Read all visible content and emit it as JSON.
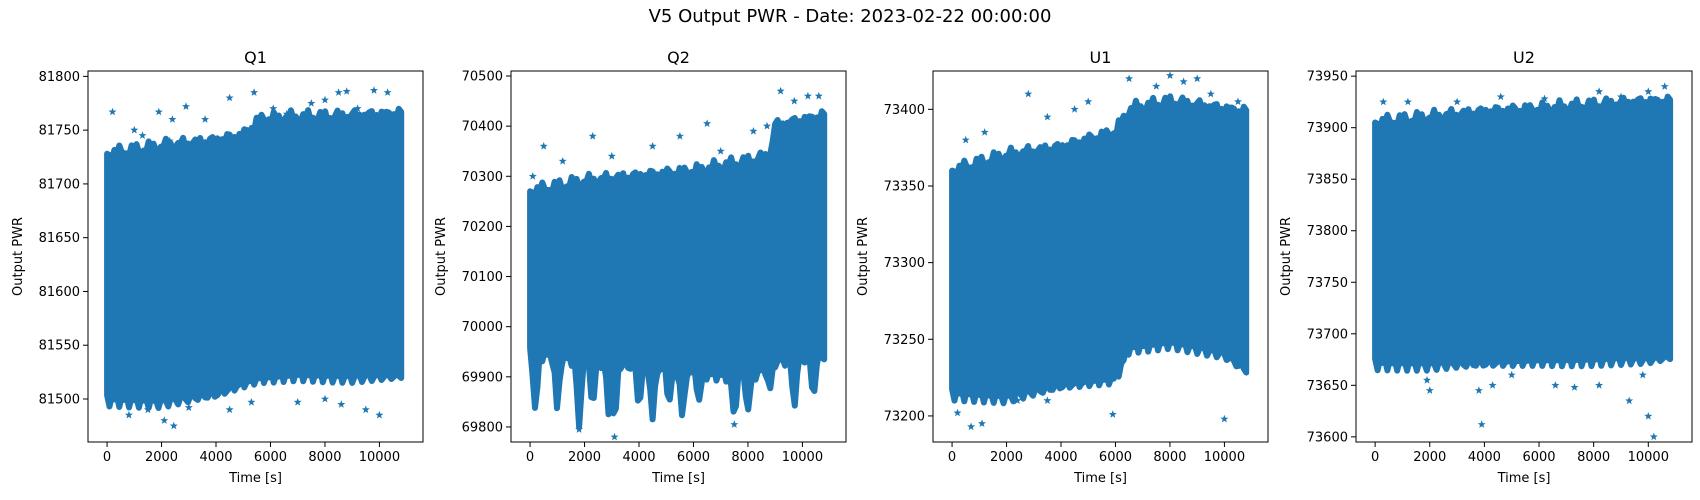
{
  "figure": {
    "suptitle": "V5 Output PWR - Date: 2023-02-22 00:00:00"
  },
  "style": {
    "marker_color": "#1f77b4",
    "marker": "star"
  },
  "chart_data": [
    {
      "type": "scatter",
      "title": "Q1",
      "xlabel": "Time [s]",
      "ylabel": "Output PWR",
      "xlim": [
        -700,
        11600
      ],
      "ylim": [
        81460,
        81805
      ],
      "xticks": [
        0,
        2000,
        4000,
        6000,
        8000,
        10000
      ],
      "yticks": [
        81500,
        81550,
        81600,
        81650,
        81700,
        81750,
        81800
      ],
      "grid": false,
      "band": {
        "x": [
          0,
          2000,
          4000,
          5000,
          5600,
          7000,
          9000,
          10800
        ],
        "upper": [
          81728,
          81735,
          81740,
          81745,
          81760,
          81762,
          81763,
          81765
        ],
        "lower": [
          81500,
          81497,
          81505,
          81515,
          81520,
          81523,
          81520,
          81522
        ]
      },
      "outliers": [
        [
          200,
          81767
        ],
        [
          1000,
          81750
        ],
        [
          1300,
          81745
        ],
        [
          1900,
          81767
        ],
        [
          2300,
          81740
        ],
        [
          2400,
          81760
        ],
        [
          2900,
          81772
        ],
        [
          3600,
          81760
        ],
        [
          4500,
          81780
        ],
        [
          5400,
          81785
        ],
        [
          6100,
          81770
        ],
        [
          6600,
          81765
        ],
        [
          7500,
          81775
        ],
        [
          8000,
          81778
        ],
        [
          8500,
          81785
        ],
        [
          8800,
          81786
        ],
        [
          9200,
          81770
        ],
        [
          9800,
          81787
        ],
        [
          10300,
          81785
        ],
        [
          800,
          81485
        ],
        [
          1500,
          81490
        ],
        [
          2100,
          81480
        ],
        [
          2450,
          81475
        ],
        [
          3000,
          81492
        ],
        [
          4500,
          81490
        ],
        [
          5300,
          81497
        ],
        [
          7000,
          81497
        ],
        [
          8000,
          81500
        ],
        [
          8600,
          81495
        ],
        [
          9500,
          81490
        ],
        [
          10000,
          81485
        ]
      ]
    },
    {
      "type": "scatter",
      "title": "Q2",
      "xlabel": "Time [s]",
      "ylabel": "Output PWR",
      "xlim": [
        -700,
        11600
      ],
      "ylim": [
        69770,
        70510
      ],
      "xticks": [
        0,
        2000,
        4000,
        6000,
        8000,
        10000
      ],
      "yticks": [
        69800,
        69900,
        70000,
        70100,
        70200,
        70300,
        70400,
        70500
      ],
      "grid": false,
      "band": {
        "x": [
          0,
          2000,
          4000,
          6000,
          8000,
          8800,
          9000,
          10800
        ],
        "upper": [
          70270,
          70290,
          70300,
          70310,
          70330,
          70340,
          70400,
          70420
        ],
        "lower": [
          69950,
          69930,
          69920,
          69910,
          69900,
          69920,
          69930,
          69940
        ]
      },
      "dips": [
        [
          200,
          69820
        ],
        [
          1000,
          69830
        ],
        [
          1800,
          69800
        ],
        [
          2300,
          69830
        ],
        [
          2900,
          69810
        ],
        [
          3100,
          69790
        ],
        [
          4000,
          69830
        ],
        [
          4500,
          69815
        ],
        [
          5100,
          69840
        ],
        [
          5600,
          69810
        ],
        [
          6200,
          69850
        ],
        [
          7500,
          69810
        ],
        [
          8000,
          69830
        ],
        [
          8800,
          69870
        ],
        [
          9700,
          69830
        ],
        [
          10400,
          69850
        ]
      ],
      "outliers": [
        [
          100,
          70300
        ],
        [
          500,
          70360
        ],
        [
          1200,
          70330
        ],
        [
          2300,
          70380
        ],
        [
          3000,
          70340
        ],
        [
          4500,
          70360
        ],
        [
          5500,
          70380
        ],
        [
          6500,
          70405
        ],
        [
          7000,
          70350
        ],
        [
          8200,
          70390
        ],
        [
          8700,
          70400
        ],
        [
          9200,
          70470
        ],
        [
          9700,
          70450
        ],
        [
          10200,
          70460
        ],
        [
          10600,
          70460
        ],
        [
          3100,
          69780
        ],
        [
          7500,
          69805
        ],
        [
          1800,
          69795
        ]
      ]
    },
    {
      "type": "scatter",
      "title": "U1",
      "xlabel": "Time [s]",
      "ylabel": "Output PWR",
      "xlim": [
        -700,
        11600
      ],
      "ylim": [
        73183,
        73425
      ],
      "xticks": [
        0,
        2000,
        4000,
        6000,
        8000,
        10000
      ],
      "yticks": [
        73200,
        73250,
        73300,
        73350,
        73400
      ],
      "grid": false,
      "band": {
        "x": [
          0,
          2000,
          4000,
          6000,
          6500,
          8000,
          10000,
          10800
        ],
        "upper": [
          73360,
          73370,
          73375,
          73385,
          73400,
          73405,
          73400,
          73398
        ],
        "lower": [
          73215,
          73212,
          73220,
          73225,
          73245,
          73248,
          73240,
          73230
        ]
      },
      "outliers": [
        [
          500,
          73380
        ],
        [
          1200,
          73385
        ],
        [
          2800,
          73410
        ],
        [
          3500,
          73395
        ],
        [
          4500,
          73400
        ],
        [
          5000,
          73405
        ],
        [
          6500,
          73420
        ],
        [
          7500,
          73415
        ],
        [
          8000,
          73422
        ],
        [
          8500,
          73418
        ],
        [
          9000,
          73420
        ],
        [
          9500,
          73410
        ],
        [
          10500,
          73405
        ],
        [
          700,
          73193
        ],
        [
          1100,
          73195
        ],
        [
          200,
          73202
        ],
        [
          5900,
          73201
        ],
        [
          10000,
          73198
        ],
        [
          3500,
          73210
        ],
        [
          2400,
          73210
        ]
      ]
    },
    {
      "type": "scatter",
      "title": "U2",
      "xlabel": "Time [s]",
      "ylabel": "Output PWR",
      "xlim": [
        -700,
        11600
      ],
      "ylim": [
        73595,
        73955
      ],
      "xticks": [
        0,
        2000,
        4000,
        6000,
        8000,
        10000
      ],
      "yticks": [
        73600,
        73650,
        73700,
        73750,
        73800,
        73850,
        73900,
        73950
      ],
      "grid": false,
      "band": {
        "x": [
          0,
          2000,
          4000,
          6000,
          8000,
          10000,
          10800
        ],
        "upper": [
          73905,
          73910,
          73915,
          73918,
          73922,
          73925,
          73925
        ],
        "lower": [
          73672,
          73670,
          73672,
          73675,
          73675,
          73675,
          73678
        ]
      },
      "outliers": [
        [
          300,
          73925
        ],
        [
          1200,
          73925
        ],
        [
          3000,
          73925
        ],
        [
          4600,
          73930
        ],
        [
          6200,
          73928
        ],
        [
          8200,
          73935
        ],
        [
          9000,
          73930
        ],
        [
          10000,
          73935
        ],
        [
          10600,
          73940
        ],
        [
          1900,
          73655
        ],
        [
          2000,
          73645
        ],
        [
          3800,
          73645
        ],
        [
          4300,
          73650
        ],
        [
          5000,
          73660
        ],
        [
          6600,
          73650
        ],
        [
          7300,
          73648
        ],
        [
          8200,
          73650
        ],
        [
          9300,
          73635
        ],
        [
          9800,
          73660
        ],
        [
          10000,
          73620
        ],
        [
          3900,
          73612
        ],
        [
          10200,
          73600
        ]
      ]
    }
  ]
}
